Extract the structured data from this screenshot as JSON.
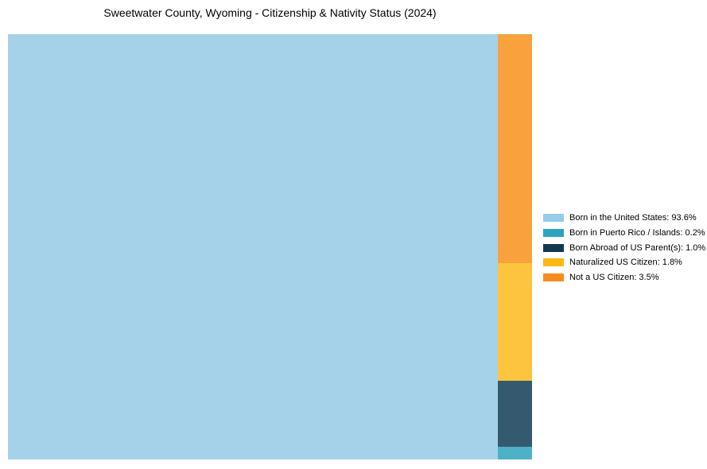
{
  "chart_data": {
    "type": "mosaic",
    "title": "Sweetwater County, Wyoming - Citizenship & Nativity Status (2024)",
    "legend_position": "right-center",
    "background": "#ffffff",
    "main_slice": "Born in the United States",
    "column_stack_top_to_bottom": [
      "Not a US Citizen",
      "Naturalized US Citizen",
      "Born Abroad of US Parent(s)",
      "Born in Puerto Rico / Islands"
    ],
    "slices": [
      {
        "label": "Born in the United States",
        "value": 93.6,
        "percent_label": "93.6%",
        "legend_text": "Born in the United States: 93.6%",
        "fill": "#A5D2E9",
        "legend_color": "#95CCE8"
      },
      {
        "label": "Born in Puerto Rico / Islands",
        "value": 0.2,
        "percent_label": "0.2%",
        "legend_text": "Born in Puerto Rico / Islands: 0.2%",
        "fill": "#4DB2C8",
        "legend_color": "#2EA3C0"
      },
      {
        "label": "Born Abroad of US Parent(s)",
        "value": 1.0,
        "percent_label": "1.0%",
        "legend_text": "Born Abroad of US Parent(s): 1.0%",
        "fill": "#35596E",
        "legend_color": "#14384E"
      },
      {
        "label": "Naturalized US Citizen",
        "value": 1.8,
        "percent_label": "1.8%",
        "legend_text": "Naturalized US Citizen: 1.8%",
        "fill": "#FDC53E",
        "legend_color": "#FDB713"
      },
      {
        "label": "Not a US Citizen",
        "value": 3.5,
        "percent_label": "3.5%",
        "legend_text": "Not a US Citizen: 3.5%",
        "fill": "#F9A13C",
        "legend_color": "#F78C1E"
      }
    ]
  }
}
